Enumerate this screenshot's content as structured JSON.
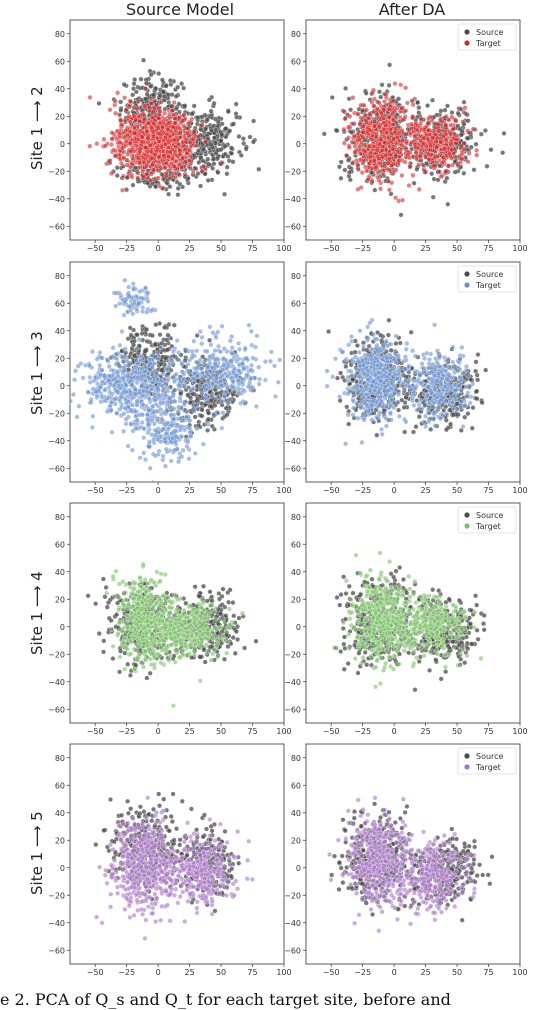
{
  "column_titles": [
    "Source Model",
    "After DA"
  ],
  "row_labels": [
    "Site 1 ⟶ 2",
    "Site 1 ⟶ 3",
    "Site 1 ⟶ 4",
    "Site 1 ⟶ 5"
  ],
  "caption": "e 2. PCA of Q_s and Q_t for each target site, before and",
  "chart_data": [
    {
      "type": "scatter",
      "row": 0,
      "col": 0,
      "xlim": [
        -70,
        100
      ],
      "ylim": [
        -70,
        90
      ],
      "xticks": [
        -50,
        -25,
        0,
        25,
        50,
        75,
        100
      ],
      "yticks": [
        -60,
        -40,
        -20,
        0,
        20,
        40,
        60,
        80
      ],
      "target_color": "#d62728",
      "legend": false,
      "series": [
        {
          "name": "Source",
          "role": "source",
          "clusters": [
            {
              "cx": -5,
              "cy": 25,
              "sx": 12,
              "sy": 12,
              "n": 260
            },
            {
              "cx": 38,
              "cy": 3,
              "sx": 14,
              "sy": 12,
              "n": 300
            },
            {
              "cx": 0,
              "cy": -20,
              "sx": 18,
              "sy": 8,
              "n": 150
            }
          ]
        },
        {
          "name": "Target",
          "role": "target",
          "clusters": [
            {
              "cx": -10,
              "cy": 2,
              "sx": 14,
              "sy": 12,
              "n": 500
            },
            {
              "cx": 8,
              "cy": 0,
              "sx": 12,
              "sy": 10,
              "n": 350
            }
          ]
        }
      ]
    },
    {
      "type": "scatter",
      "row": 0,
      "col": 1,
      "xlim": [
        -70,
        100
      ],
      "ylim": [
        -70,
        90
      ],
      "xticks": [
        -50,
        -25,
        0,
        25,
        50,
        75,
        100
      ],
      "yticks": [
        -60,
        -40,
        -20,
        0,
        20,
        40,
        60,
        80
      ],
      "target_color": "#d62728",
      "legend": true,
      "legend_position": "top-right",
      "legend_labels": [
        "Source",
        "Target"
      ],
      "series": [
        {
          "name": "Source",
          "role": "source",
          "clusters": [
            {
              "cx": -12,
              "cy": 5,
              "sx": 14,
              "sy": 16,
              "n": 350
            },
            {
              "cx": 38,
              "cy": 0,
              "sx": 13,
              "sy": 12,
              "n": 300
            }
          ]
        },
        {
          "name": "Target",
          "role": "target",
          "clusters": [
            {
              "cx": -10,
              "cy": 3,
              "sx": 12,
              "sy": 15,
              "n": 450
            },
            {
              "cx": 32,
              "cy": 0,
              "sx": 12,
              "sy": 10,
              "n": 300
            }
          ]
        }
      ]
    },
    {
      "type": "scatter",
      "row": 1,
      "col": 0,
      "xlim": [
        -70,
        100
      ],
      "ylim": [
        -70,
        90
      ],
      "xticks": [
        -50,
        -25,
        0,
        25,
        50,
        75,
        100
      ],
      "yticks": [
        -60,
        -40,
        -20,
        0,
        20,
        40,
        60,
        80
      ],
      "target_color": "#6b93d0",
      "legend": false,
      "series": [
        {
          "name": "Source",
          "role": "source",
          "clusters": [
            {
              "cx": -5,
              "cy": 20,
              "sx": 12,
              "sy": 12,
              "n": 220
            },
            {
              "cx": 38,
              "cy": -5,
              "sx": 13,
              "sy": 12,
              "n": 250
            }
          ]
        },
        {
          "name": "Target",
          "role": "target",
          "clusters": [
            {
              "cx": -25,
              "cy": 0,
              "sx": 18,
              "sy": 12,
              "n": 450
            },
            {
              "cx": 5,
              "cy": -30,
              "sx": 14,
              "sy": 14,
              "n": 250
            },
            {
              "cx": -18,
              "cy": 62,
              "sx": 7,
              "sy": 7,
              "n": 70
            },
            {
              "cx": 50,
              "cy": 10,
              "sx": 18,
              "sy": 12,
              "n": 300
            }
          ]
        }
      ]
    },
    {
      "type": "scatter",
      "row": 1,
      "col": 1,
      "xlim": [
        -70,
        100
      ],
      "ylim": [
        -70,
        90
      ],
      "xticks": [
        -50,
        -25,
        0,
        25,
        50,
        75,
        100
      ],
      "yticks": [
        -60,
        -40,
        -20,
        0,
        20,
        40,
        60,
        80
      ],
      "target_color": "#6b93d0",
      "legend": true,
      "legend_position": "top-right",
      "legend_labels": [
        "Source",
        "Target"
      ],
      "series": [
        {
          "name": "Source",
          "role": "source",
          "clusters": [
            {
              "cx": -12,
              "cy": 5,
              "sx": 14,
              "sy": 16,
              "n": 350
            },
            {
              "cx": 40,
              "cy": -5,
              "sx": 13,
              "sy": 12,
              "n": 250
            }
          ]
        },
        {
          "name": "Target",
          "role": "target",
          "clusters": [
            {
              "cx": -15,
              "cy": 5,
              "sx": 12,
              "sy": 15,
              "n": 450
            },
            {
              "cx": 35,
              "cy": 0,
              "sx": 12,
              "sy": 12,
              "n": 280
            }
          ]
        }
      ]
    },
    {
      "type": "scatter",
      "row": 2,
      "col": 0,
      "xlim": [
        -70,
        100
      ],
      "ylim": [
        -70,
        90
      ],
      "xticks": [
        -50,
        -25,
        0,
        25,
        50,
        75,
        100
      ],
      "yticks": [
        -60,
        -40,
        -20,
        0,
        20,
        40,
        60,
        80
      ],
      "target_color": "#7cc267",
      "legend": false,
      "series": [
        {
          "name": "Source",
          "role": "source",
          "clusters": [
            {
              "cx": -12,
              "cy": 2,
              "sx": 14,
              "sy": 14,
              "n": 300
            },
            {
              "cx": 38,
              "cy": 0,
              "sx": 13,
              "sy": 12,
              "n": 250
            }
          ]
        },
        {
          "name": "Target",
          "role": "target",
          "clusters": [
            {
              "cx": -10,
              "cy": 5,
              "sx": 12,
              "sy": 15,
              "n": 450
            },
            {
              "cx": 25,
              "cy": -3,
              "sx": 14,
              "sy": 10,
              "n": 300
            }
          ]
        }
      ]
    },
    {
      "type": "scatter",
      "row": 2,
      "col": 1,
      "xlim": [
        -70,
        100
      ],
      "ylim": [
        -70,
        90
      ],
      "xticks": [
        -50,
        -25,
        0,
        25,
        50,
        75,
        100
      ],
      "yticks": [
        -60,
        -40,
        -20,
        0,
        20,
        40,
        60,
        80
      ],
      "target_color": "#7cc267",
      "legend": true,
      "legend_position": "top-right",
      "legend_labels": [
        "Source",
        "Target"
      ],
      "series": [
        {
          "name": "Source",
          "role": "source",
          "clusters": [
            {
              "cx": -12,
              "cy": 3,
              "sx": 14,
              "sy": 16,
              "n": 350
            },
            {
              "cx": 40,
              "cy": -3,
              "sx": 13,
              "sy": 12,
              "n": 250
            }
          ]
        },
        {
          "name": "Target",
          "role": "target",
          "clusters": [
            {
              "cx": -10,
              "cy": 5,
              "sx": 12,
              "sy": 15,
              "n": 450
            },
            {
              "cx": 30,
              "cy": 0,
              "sx": 14,
              "sy": 10,
              "n": 300
            }
          ]
        }
      ]
    },
    {
      "type": "scatter",
      "row": 3,
      "col": 0,
      "xlim": [
        -70,
        100
      ],
      "ylim": [
        -70,
        90
      ],
      "xticks": [
        -50,
        -25,
        0,
        25,
        50,
        75,
        100
      ],
      "yticks": [
        -60,
        -40,
        -20,
        0,
        20,
        40,
        60,
        80
      ],
      "target_color": "#a974c4",
      "legend": false,
      "series": [
        {
          "name": "Source",
          "role": "source",
          "clusters": [
            {
              "cx": -10,
              "cy": 15,
              "sx": 14,
              "sy": 15,
              "n": 280
            },
            {
              "cx": 38,
              "cy": 5,
              "sx": 12,
              "sy": 12,
              "n": 220
            }
          ]
        },
        {
          "name": "Target",
          "role": "target",
          "clusters": [
            {
              "cx": -10,
              "cy": 0,
              "sx": 13,
              "sy": 17,
              "n": 450
            },
            {
              "cx": 35,
              "cy": -2,
              "sx": 13,
              "sy": 12,
              "n": 300
            }
          ]
        }
      ]
    },
    {
      "type": "scatter",
      "row": 3,
      "col": 1,
      "xlim": [
        -70,
        100
      ],
      "ylim": [
        -70,
        90
      ],
      "xticks": [
        -50,
        -25,
        0,
        25,
        50,
        75,
        100
      ],
      "yticks": [
        -60,
        -40,
        -20,
        0,
        20,
        40,
        60,
        80
      ],
      "target_color": "#a974c4",
      "legend": true,
      "legend_position": "top-right",
      "legend_labels": [
        "Source",
        "Target"
      ],
      "series": [
        {
          "name": "Source",
          "role": "source",
          "clusters": [
            {
              "cx": -12,
              "cy": 5,
              "sx": 14,
              "sy": 16,
              "n": 350
            },
            {
              "cx": 40,
              "cy": -3,
              "sx": 13,
              "sy": 12,
              "n": 250
            }
          ]
        },
        {
          "name": "Target",
          "role": "target",
          "clusters": [
            {
              "cx": -12,
              "cy": 5,
              "sx": 12,
              "sy": 15,
              "n": 450
            },
            {
              "cx": 32,
              "cy": -5,
              "sx": 12,
              "sy": 12,
              "n": 280
            }
          ]
        }
      ]
    }
  ],
  "source_color": "#4a4a4a"
}
